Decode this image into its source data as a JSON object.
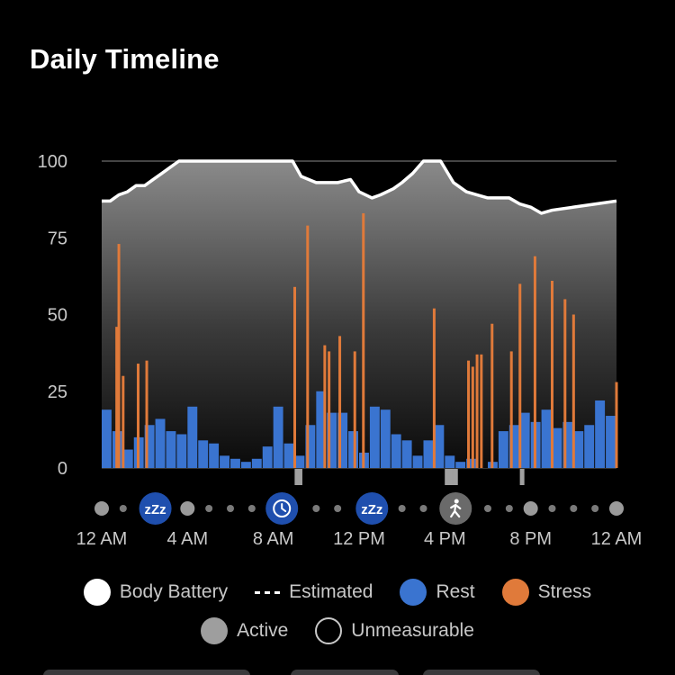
{
  "header": {
    "title": "Daily Timeline"
  },
  "colors": {
    "body_battery": "#ffffff",
    "rest": "#3a74d0",
    "stress": "#e07a3a",
    "active": "#9e9e9e",
    "grid": "#5a5a5a",
    "icon_blue": "#1f4fae"
  },
  "chart_data": {
    "type": "area",
    "ylim": [
      0,
      100
    ],
    "yticks": [
      "100",
      "75",
      "50",
      "25",
      "0"
    ],
    "xlim": [
      0,
      24
    ],
    "xticks": [
      "12 AM",
      "4 AM",
      "8 AM",
      "12 PM",
      "4 PM",
      "8 PM",
      "12 AM"
    ],
    "series": [
      {
        "name": "Body Battery",
        "x": [
          0,
          0.4,
          0.8,
          1.2,
          1.6,
          2.0,
          2.4,
          2.8,
          3.2,
          3.6,
          4.0,
          5.0,
          6.0,
          7.0,
          8.0,
          8.9,
          9.3,
          10.0,
          11.0,
          11.6,
          11.8,
          12.0,
          12.6,
          13.0,
          13.6,
          14.0,
          14.5,
          15.0,
          15.4,
          15.8,
          16.4,
          16.8,
          17.0,
          17.5,
          18.0,
          19.0,
          19.5,
          20.0,
          20.5,
          21.0,
          22.0,
          23.0,
          24.0
        ],
        "values": [
          87,
          87,
          89,
          90,
          92,
          92,
          94,
          96,
          98,
          100,
          100,
          100,
          100,
          100,
          100,
          100,
          95,
          93,
          93,
          94,
          92,
          90,
          88,
          89,
          91,
          93,
          96,
          100,
          100,
          100,
          93,
          91,
          90,
          89,
          88,
          88,
          86,
          85,
          83,
          84,
          85,
          86,
          87
        ]
      },
      {
        "name": "Rest",
        "x": [
          0,
          0.5,
          1.0,
          1.5,
          2.0,
          2.5,
          3.0,
          3.5,
          4.0,
          4.5,
          5.0,
          5.5,
          6.0,
          6.5,
          7.0,
          7.5,
          8.0,
          8.5,
          9.0,
          9.5,
          10.0,
          10.5,
          11.0,
          11.5,
          12.0,
          12.5,
          13.0,
          13.5,
          14.0,
          14.5,
          15.0,
          15.5,
          16.0,
          16.5,
          17.0,
          17.5,
          18.0,
          18.5,
          19.0,
          19.5,
          20.0,
          20.5,
          21.0,
          21.5,
          22.0,
          22.5,
          23.0,
          23.5
        ],
        "values": [
          19,
          12,
          6,
          10,
          14,
          16,
          12,
          11,
          20,
          9,
          8,
          4,
          3,
          2,
          3,
          7,
          20,
          8,
          4,
          14,
          25,
          18,
          18,
          12,
          5,
          20,
          19,
          11,
          9,
          4,
          9,
          14,
          4,
          2,
          3,
          0,
          2,
          12,
          14,
          18,
          15,
          19,
          13,
          15,
          12,
          14,
          22,
          17
        ]
      },
      {
        "name": "Stress",
        "x": [
          0.7,
          0.8,
          1.0,
          1.7,
          2.1,
          9.0,
          9.6,
          10.4,
          10.6,
          11.1,
          11.8,
          12.2,
          15.5,
          17.1,
          17.3,
          17.5,
          17.7,
          18.2,
          19.1,
          19.5,
          20.2,
          21.0,
          21.6,
          22.0,
          24.0
        ],
        "values": [
          46,
          73,
          30,
          34,
          35,
          59,
          79,
          40,
          38,
          43,
          38,
          83,
          52,
          35,
          33,
          37,
          37,
          47,
          38,
          60,
          69,
          61,
          55,
          50,
          28
        ]
      }
    ],
    "unmeasurable_x": [
      9.1,
      9.25,
      16.1,
      16.3,
      16.5,
      19.6
    ],
    "legend": [
      "Body Battery",
      "Estimated",
      "Rest",
      "Stress",
      "Active",
      "Unmeasurable"
    ],
    "legend_placement": "bottom",
    "grid": true
  },
  "timeline": {
    "markers": [
      {
        "hour": 2.5,
        "icon": "sleep-zzz-icon",
        "text": "zZz"
      },
      {
        "hour": 8.4,
        "icon": "clock-icon",
        "text": ""
      },
      {
        "hour": 12.6,
        "icon": "sleep-zzz-icon",
        "text": "zZz"
      },
      {
        "hour": 16.5,
        "icon": "walking-icon",
        "text": ""
      }
    ]
  },
  "legend": {
    "body_battery": "Body Battery",
    "estimated": "Estimated",
    "rest": "Rest",
    "stress": "Stress",
    "active": "Active",
    "unmeasurable": "Unmeasurable"
  }
}
